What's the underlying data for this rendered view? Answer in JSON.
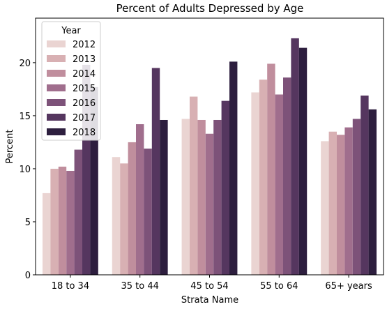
{
  "chart_data": {
    "type": "bar",
    "title": "Percent of Adults Depressed by Age",
    "xlabel": "Strata Name",
    "ylabel": "Percent",
    "categories": [
      "18 to 34",
      "35 to 44",
      "45 to 54",
      "55 to 64",
      "65+ years"
    ],
    "ylim": [
      0,
      24.2
    ],
    "yticks": [
      0,
      5,
      10,
      15,
      20
    ],
    "grid": false,
    "legend": {
      "title": "Year",
      "position": "top-left"
    },
    "series": [
      {
        "name": "2012",
        "color": "#ead4d2",
        "values": [
          7.7,
          11.1,
          14.7,
          17.2,
          12.6
        ]
      },
      {
        "name": "2013",
        "color": "#d8b0b3",
        "values": [
          10.0,
          10.5,
          16.8,
          18.4,
          13.5
        ]
      },
      {
        "name": "2014",
        "color": "#c08e9d",
        "values": [
          10.2,
          12.5,
          14.6,
          19.9,
          13.2
        ]
      },
      {
        "name": "2015",
        "color": "#a06e8d",
        "values": [
          9.8,
          14.2,
          13.3,
          17.0,
          13.9
        ]
      },
      {
        "name": "2016",
        "color": "#7d5279",
        "values": [
          11.8,
          11.9,
          14.6,
          18.6,
          14.7
        ]
      },
      {
        "name": "2017",
        "color": "#55365f",
        "values": [
          19.8,
          19.5,
          16.4,
          22.3,
          16.9
        ]
      },
      {
        "name": "2018",
        "color": "#2d1e3e",
        "values": [
          17.7,
          14.6,
          20.1,
          21.4,
          15.6
        ]
      }
    ]
  }
}
